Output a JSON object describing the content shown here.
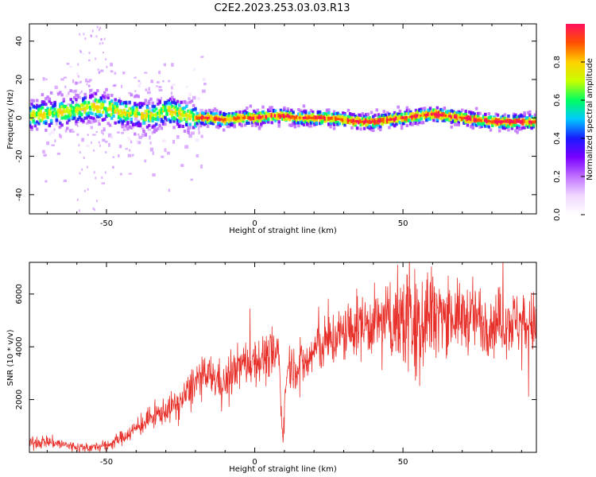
{
  "title": "C2E2.2023.253.03.03.R13",
  "colors": {
    "snr_line": "#e8302a",
    "background": "#ffffff",
    "axis": "#000000",
    "colormap": [
      "#ffffff",
      "#f0d8ff",
      "#c070ff",
      "#7a00ff",
      "#1a1aff",
      "#00c8ff",
      "#00ff60",
      "#c8ff00",
      "#ffd000",
      "#ff5000",
      "#ff1060"
    ]
  },
  "chart_data": [
    {
      "type": "heatmap",
      "title": "C2E2.2023.253.03.03.R13",
      "xlabel": "Height of straight line (km)",
      "ylabel": "Frequency (Hz)",
      "xlim": [
        -76,
        95
      ],
      "ylim": [
        -50,
        49
      ],
      "xticks": [
        -50,
        0,
        50
      ],
      "yticks": [
        40,
        20,
        0,
        -20,
        -40
      ],
      "grid": false,
      "ridge": {
        "x": [
          -76,
          -70,
          -65,
          -60,
          -55,
          -50,
          -45,
          -40,
          -35,
          -30,
          -25,
          -20,
          -15,
          -10,
          -5,
          0,
          5,
          10,
          15,
          20,
          25,
          30,
          35,
          40,
          45,
          50,
          55,
          60,
          65,
          70,
          75,
          80,
          85,
          90,
          95
        ],
        "y": [
          1,
          2,
          3,
          4,
          6,
          5,
          3,
          2,
          1,
          4,
          2,
          0,
          0,
          -1,
          0,
          0,
          1,
          1,
          0,
          0,
          0,
          -1,
          -2,
          -2,
          -1,
          0,
          1,
          2,
          1,
          0,
          -1,
          -2,
          -2,
          -2,
          -2
        ]
      },
      "colorbar": {
        "label": "Normalized spectral amplitude",
        "range": [
          0,
          1
        ],
        "ticks": [
          0.0,
          0.2,
          0.4,
          0.6,
          0.8
        ],
        "tick_labels": [
          "0.0",
          "0.2",
          "0.4",
          "0.6",
          "0.8"
        ]
      }
    },
    {
      "type": "line",
      "xlabel": "Height of straight line (km)",
      "ylabel": "SNR (10 * v/v)",
      "xlim": [
        -76,
        95
      ],
      "ylim": [
        0,
        7200
      ],
      "xticks": [
        -50,
        0,
        50
      ],
      "yticks": [
        2000,
        4000,
        6000
      ],
      "grid": false,
      "series": [
        {
          "x": [
            -76,
            -70,
            -65,
            -60,
            -55,
            -50,
            -45,
            -40,
            -35,
            -30,
            -25,
            -20,
            -15,
            -10,
            -8,
            -5,
            0,
            5,
            8,
            9.5,
            11,
            14,
            18,
            20,
            25,
            30,
            35,
            40,
            45,
            50,
            52,
            54,
            57,
            60,
            65,
            70,
            75,
            80,
            85,
            90,
            95
          ],
          "y": [
            350,
            420,
            300,
            200,
            180,
            250,
            550,
            900,
            1300,
            1600,
            1900,
            2700,
            2900,
            2600,
            2900,
            3300,
            3500,
            3600,
            3800,
            500,
            3300,
            3300,
            3400,
            3900,
            4200,
            4500,
            4800,
            4900,
            5000,
            4950,
            5400,
            4700,
            5200,
            5350,
            5200,
            5100,
            5100,
            4900,
            5000,
            4900,
            4850
          ]
        }
      ]
    }
  ]
}
